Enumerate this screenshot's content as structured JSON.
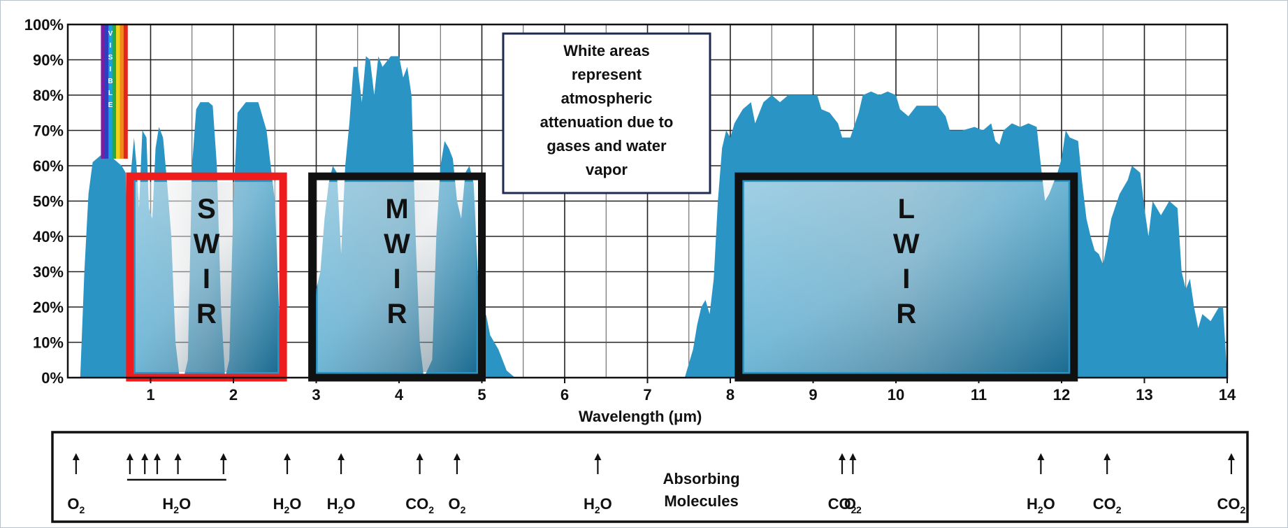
{
  "chart_data": {
    "type": "area",
    "xlabel": "Wavelength (μm)",
    "ylabel": "",
    "xlim": [
      0,
      14
    ],
    "ylim": [
      0,
      100
    ],
    "x_ticks": [
      1,
      2,
      3,
      4,
      5,
      6,
      7,
      8,
      9,
      10,
      11,
      12,
      13,
      14
    ],
    "y_ticks": [
      "0%",
      "10%",
      "20%",
      "30%",
      "40%",
      "50%",
      "60%",
      "70%",
      "80%",
      "90%",
      "100%"
    ],
    "grid": true,
    "fill_color": "#2a95c4",
    "series": [
      {
        "values": [
          [
            0.15,
            0
          ],
          [
            0.2,
            30
          ],
          [
            0.25,
            52
          ],
          [
            0.3,
            61
          ],
          [
            0.4,
            63
          ],
          [
            0.55,
            62
          ],
          [
            0.65,
            60
          ],
          [
            0.7,
            58
          ],
          [
            0.72,
            30
          ],
          [
            0.75,
            55
          ],
          [
            0.8,
            68
          ],
          [
            0.83,
            60
          ],
          [
            0.86,
            48
          ],
          [
            0.9,
            70
          ],
          [
            0.95,
            68
          ],
          [
            0.98,
            48
          ],
          [
            1.02,
            45
          ],
          [
            1.06,
            65
          ],
          [
            1.1,
            71
          ],
          [
            1.15,
            68
          ],
          [
            1.2,
            55
          ],
          [
            1.25,
            40
          ],
          [
            1.3,
            10
          ],
          [
            1.35,
            0
          ],
          [
            1.4,
            0
          ],
          [
            1.45,
            5
          ],
          [
            1.5,
            60
          ],
          [
            1.55,
            76
          ],
          [
            1.6,
            78
          ],
          [
            1.7,
            78
          ],
          [
            1.75,
            77
          ],
          [
            1.8,
            60
          ],
          [
            1.85,
            20
          ],
          [
            1.9,
            0
          ],
          [
            1.95,
            5
          ],
          [
            2.0,
            50
          ],
          [
            2.05,
            75
          ],
          [
            2.15,
            78
          ],
          [
            2.3,
            78
          ],
          [
            2.4,
            70
          ],
          [
            2.5,
            50
          ],
          [
            2.55,
            20
          ],
          [
            2.6,
            0
          ],
          [
            2.9,
            0
          ],
          [
            2.95,
            5
          ],
          [
            3.0,
            25
          ],
          [
            3.05,
            30
          ],
          [
            3.1,
            45
          ],
          [
            3.15,
            55
          ],
          [
            3.2,
            60
          ],
          [
            3.25,
            58
          ],
          [
            3.3,
            35
          ],
          [
            3.35,
            60
          ],
          [
            3.4,
            72
          ],
          [
            3.45,
            88
          ],
          [
            3.5,
            88
          ],
          [
            3.55,
            78
          ],
          [
            3.6,
            91
          ],
          [
            3.65,
            90
          ],
          [
            3.7,
            80
          ],
          [
            3.75,
            91
          ],
          [
            3.8,
            88
          ],
          [
            3.9,
            91
          ],
          [
            4.0,
            91
          ],
          [
            4.05,
            85
          ],
          [
            4.1,
            88
          ],
          [
            4.15,
            80
          ],
          [
            4.2,
            40
          ],
          [
            4.25,
            10
          ],
          [
            4.3,
            0
          ],
          [
            4.4,
            5
          ],
          [
            4.45,
            40
          ],
          [
            4.5,
            60
          ],
          [
            4.55,
            67
          ],
          [
            4.6,
            65
          ],
          [
            4.65,
            62
          ],
          [
            4.7,
            50
          ],
          [
            4.75,
            45
          ],
          [
            4.8,
            58
          ],
          [
            4.85,
            60
          ],
          [
            4.9,
            55
          ],
          [
            4.95,
            30
          ],
          [
            5.0,
            10
          ],
          [
            5.05,
            18
          ],
          [
            5.1,
            12
          ],
          [
            5.2,
            8
          ],
          [
            5.3,
            2
          ],
          [
            5.4,
            0
          ],
          [
            7.45,
            0
          ],
          [
            7.55,
            8
          ],
          [
            7.6,
            15
          ],
          [
            7.65,
            20
          ],
          [
            7.7,
            22
          ],
          [
            7.75,
            18
          ],
          [
            7.8,
            28
          ],
          [
            7.85,
            50
          ],
          [
            7.9,
            65
          ],
          [
            7.95,
            70
          ],
          [
            8.0,
            68
          ],
          [
            8.05,
            72
          ],
          [
            8.1,
            74
          ],
          [
            8.15,
            76
          ],
          [
            8.25,
            78
          ],
          [
            8.3,
            72
          ],
          [
            8.4,
            78
          ],
          [
            8.5,
            80
          ],
          [
            8.6,
            78
          ],
          [
            8.7,
            80
          ],
          [
            8.9,
            80
          ],
          [
            9.05,
            80
          ],
          [
            9.1,
            76
          ],
          [
            9.2,
            75
          ],
          [
            9.3,
            72
          ],
          [
            9.35,
            68
          ],
          [
            9.45,
            68
          ],
          [
            9.55,
            75
          ],
          [
            9.6,
            80
          ],
          [
            9.7,
            81
          ],
          [
            9.8,
            80
          ],
          [
            9.9,
            81
          ],
          [
            10.0,
            80
          ],
          [
            10.05,
            76
          ],
          [
            10.15,
            74
          ],
          [
            10.25,
            77
          ],
          [
            10.5,
            77
          ],
          [
            10.6,
            74
          ],
          [
            10.65,
            70
          ],
          [
            10.8,
            70
          ],
          [
            10.95,
            71
          ],
          [
            11.05,
            70
          ],
          [
            11.15,
            72
          ],
          [
            11.2,
            67
          ],
          [
            11.25,
            66
          ],
          [
            11.3,
            70
          ],
          [
            11.4,
            72
          ],
          [
            11.5,
            71
          ],
          [
            11.6,
            72
          ],
          [
            11.7,
            71
          ],
          [
            11.75,
            60
          ],
          [
            11.8,
            50
          ],
          [
            11.85,
            52
          ],
          [
            11.9,
            55
          ],
          [
            11.95,
            58
          ],
          [
            12.0,
            62
          ],
          [
            12.05,
            70
          ],
          [
            12.1,
            68
          ],
          [
            12.2,
            67
          ],
          [
            12.25,
            55
          ],
          [
            12.3,
            45
          ],
          [
            12.35,
            40
          ],
          [
            12.4,
            36
          ],
          [
            12.45,
            35
          ],
          [
            12.5,
            32
          ],
          [
            12.55,
            38
          ],
          [
            12.6,
            45
          ],
          [
            12.7,
            52
          ],
          [
            12.8,
            56
          ],
          [
            12.85,
            60
          ],
          [
            12.95,
            58
          ],
          [
            13.0,
            48
          ],
          [
            13.05,
            40
          ],
          [
            13.1,
            50
          ],
          [
            13.2,
            46
          ],
          [
            13.3,
            50
          ],
          [
            13.4,
            48
          ],
          [
            13.45,
            30
          ],
          [
            13.5,
            25
          ],
          [
            13.55,
            28
          ],
          [
            13.6,
            20
          ],
          [
            13.65,
            14
          ],
          [
            13.7,
            18
          ],
          [
            13.8,
            16
          ],
          [
            13.9,
            20
          ],
          [
            13.95,
            20
          ],
          [
            14.0,
            0
          ]
        ]
      }
    ],
    "bands": [
      {
        "label": "SWIR",
        "letters": [
          "S",
          "W",
          "I",
          "R"
        ],
        "x_start": 0.75,
        "x_end": 2.6,
        "y_top": 57,
        "color": "#ee1c1c"
      },
      {
        "label": "MWIR",
        "letters": [
          "M",
          "W",
          "I",
          "R"
        ],
        "x_start": 2.95,
        "x_end": 5.0,
        "y_top": 57,
        "color": "#111111"
      },
      {
        "label": "LWIR",
        "letters": [
          "L",
          "W",
          "I",
          "R"
        ],
        "x_start": 8.1,
        "x_end": 12.15,
        "y_top": 57,
        "color": "#111111"
      }
    ],
    "visible_label": "VISIBLE",
    "annotation": [
      "White areas",
      "represent",
      "atmospheric",
      "attenuation due to",
      "gases and water",
      "vapor"
    ],
    "absorbing_molecules": {
      "caption": [
        "Absorbing",
        "Molecules"
      ],
      "markers": [
        {
          "base": "O",
          "sub": "2",
          "arrows_x": [
            0.1
          ]
        },
        {
          "base": "H",
          "sub": "2",
          "tail": "O",
          "arrows_x": [
            0.75,
            0.93,
            1.08,
            1.33,
            1.88
          ],
          "bracket": true
        },
        {
          "base": "H",
          "sub": "2",
          "tail": "O",
          "arrows_x": [
            2.65
          ]
        },
        {
          "base": "H",
          "sub": "2",
          "tail": "O",
          "arrows_x": [
            3.3
          ]
        },
        {
          "base": "CO",
          "sub": "2",
          "arrows_x": [
            4.25
          ]
        },
        {
          "base": "O",
          "sub": "2",
          "arrows_x": [
            4.7
          ]
        },
        {
          "base": "H",
          "sub": "2",
          "tail": "O",
          "arrows_x": [
            6.4
          ]
        },
        {
          "base": "CO",
          "sub": "2",
          "arrows_x": [
            9.35
          ]
        },
        {
          "base": "O",
          "sub": "2",
          "arrows_x": [
            9.48
          ]
        },
        {
          "base": "H",
          "sub": "2",
          "tail": "O",
          "arrows_x": [
            11.75
          ]
        },
        {
          "base": "CO",
          "sub": "2",
          "arrows_x": [
            12.55
          ]
        },
        {
          "base": "CO",
          "sub": "2",
          "arrows_x": [
            14.05
          ]
        }
      ]
    }
  }
}
